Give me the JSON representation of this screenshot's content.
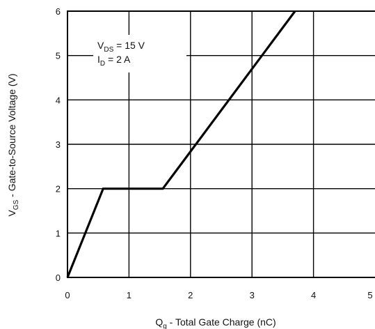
{
  "chart_data": {
    "type": "line",
    "xlabel": {
      "main": "Q",
      "sub": "g",
      "rest": " - Total Gate Charge (nC)"
    },
    "ylabel": {
      "main": "V",
      "sub": "GS",
      "rest": "  - Gate-to-Source Voltage (V)"
    },
    "xlim": [
      0,
      5
    ],
    "ylim": [
      0,
      6
    ],
    "x_ticks": [
      "0",
      "1",
      "2",
      "3",
      "4",
      "5"
    ],
    "y_ticks": [
      "0",
      "1",
      "2",
      "3",
      "4",
      "5",
      "6"
    ],
    "grid": true,
    "annotations": [
      {
        "main": "V",
        "sub": "DS",
        "rest": " = 15 V"
      },
      {
        "main": "I",
        "sub": "D",
        "rest": " = 2 A"
      }
    ],
    "series": [
      {
        "x": [
          0,
          0.58,
          1.55,
          3.7
        ],
        "y": [
          0,
          2.0,
          2.0,
          6.0
        ]
      }
    ]
  }
}
